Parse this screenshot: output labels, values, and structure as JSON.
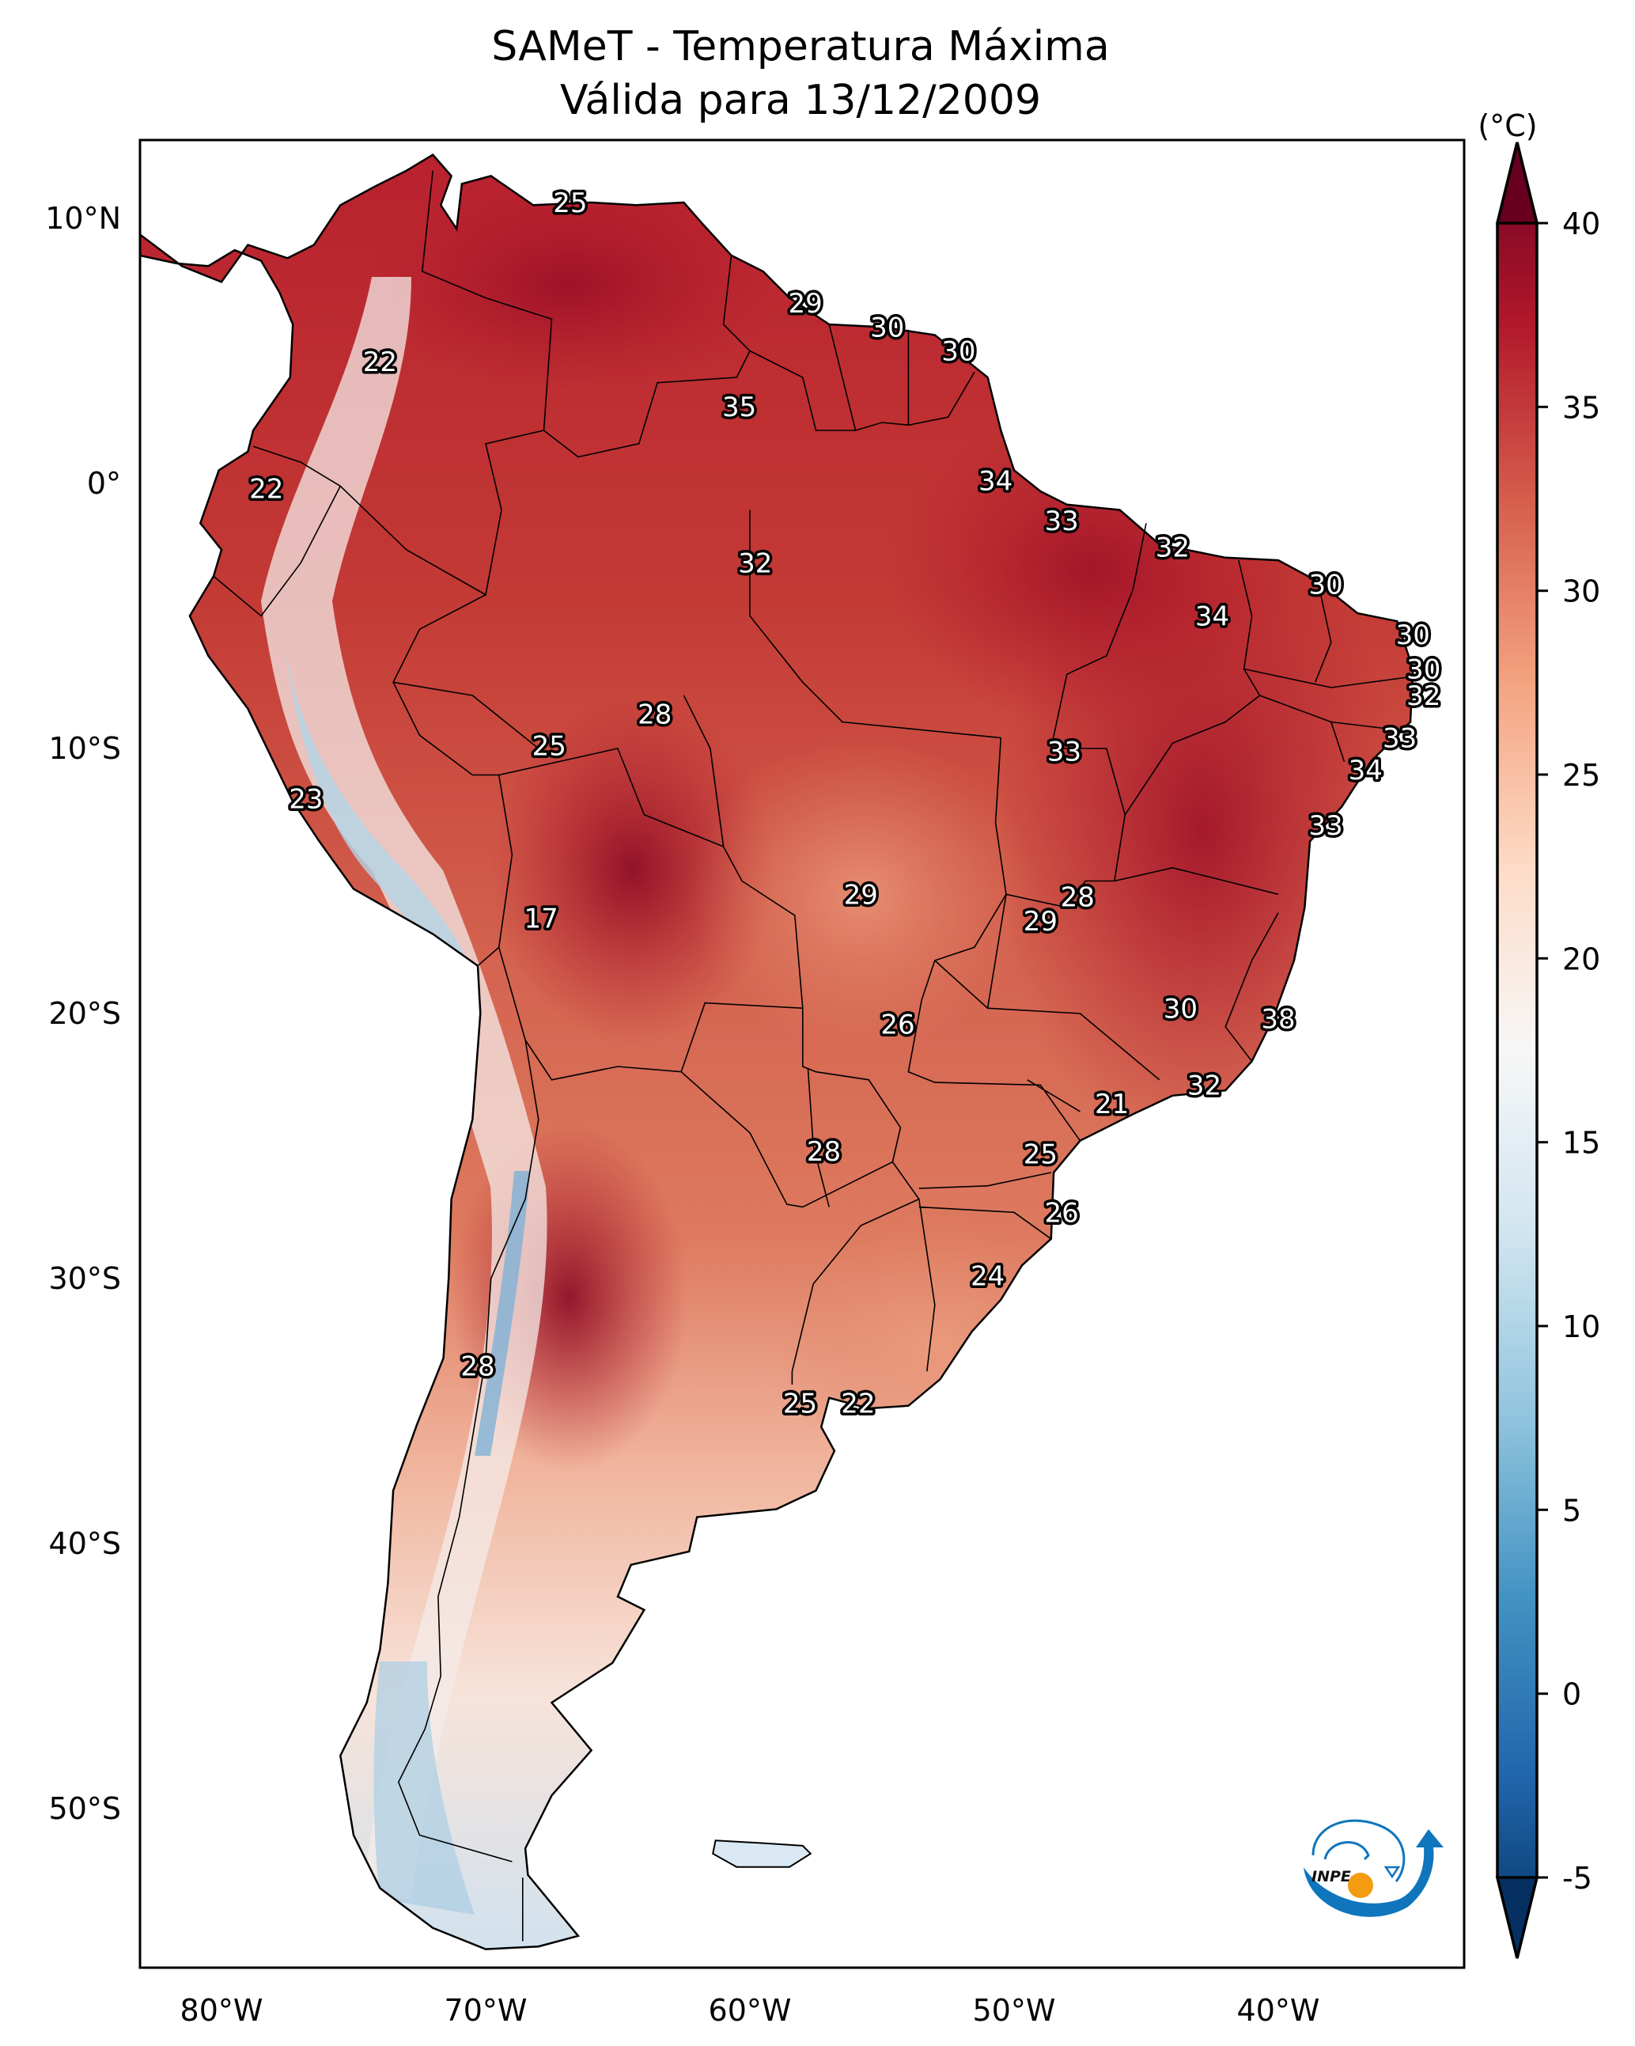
{
  "title": {
    "line1": "SAMeT - Temperatura Máxima",
    "line2": "Válida para 13/12/2009"
  },
  "map": {
    "region": "South America",
    "lon_range": [
      -83.1,
      -33.0
    ],
    "lat_range": [
      -56.0,
      12.95
    ],
    "x_ticks": [
      {
        "value": -80,
        "label": "80°W"
      },
      {
        "value": -70,
        "label": "70°W"
      },
      {
        "value": -60,
        "label": "60°W"
      },
      {
        "value": -50,
        "label": "50°W"
      },
      {
        "value": -40,
        "label": "40°W"
      }
    ],
    "y_ticks": [
      {
        "value": 10,
        "label": "10°N"
      },
      {
        "value": 0,
        "label": "0°"
      },
      {
        "value": -10,
        "label": "10°S"
      },
      {
        "value": -20,
        "label": "20°S"
      },
      {
        "value": -30,
        "label": "30°S"
      },
      {
        "value": -40,
        "label": "40°S"
      },
      {
        "value": -50,
        "label": "50°S"
      }
    ],
    "contour_labels": [
      {
        "value": "25",
        "lon": -66.8,
        "lat": 10.6
      },
      {
        "value": "22",
        "lon": -74.0,
        "lat": 4.6
      },
      {
        "value": "29",
        "lon": -57.9,
        "lat": 6.8
      },
      {
        "value": "30",
        "lon": -54.8,
        "lat": 5.9
      },
      {
        "value": "30",
        "lon": -52.1,
        "lat": 5.0
      },
      {
        "value": "35",
        "lon": -60.4,
        "lat": 2.9
      },
      {
        "value": "22",
        "lon": -78.3,
        "lat": -0.2
      },
      {
        "value": "34",
        "lon": -50.7,
        "lat": 0.1
      },
      {
        "value": "33",
        "lon": -48.2,
        "lat": -1.4
      },
      {
        "value": "32",
        "lon": -59.8,
        "lat": -3.0
      },
      {
        "value": "32",
        "lon": -44.0,
        "lat": -2.4
      },
      {
        "value": "30",
        "lon": -38.2,
        "lat": -3.8
      },
      {
        "value": "34",
        "lon": -42.5,
        "lat": -5.0
      },
      {
        "value": "30",
        "lon": -34.9,
        "lat": -5.7
      },
      {
        "value": "30",
        "lon": -34.5,
        "lat": -7.0
      },
      {
        "value": "32",
        "lon": -34.5,
        "lat": -8.0
      },
      {
        "value": "28",
        "lon": -63.6,
        "lat": -8.7
      },
      {
        "value": "25",
        "lon": -67.6,
        "lat": -9.9
      },
      {
        "value": "33",
        "lon": -48.1,
        "lat": -10.1
      },
      {
        "value": "33",
        "lon": -35.4,
        "lat": -9.6
      },
      {
        "value": "34",
        "lon": -36.7,
        "lat": -10.8
      },
      {
        "value": "23",
        "lon": -76.8,
        "lat": -11.9
      },
      {
        "value": "33",
        "lon": -38.2,
        "lat": -12.9
      },
      {
        "value": "28",
        "lon": -47.6,
        "lat": -15.6
      },
      {
        "value": "29",
        "lon": -55.8,
        "lat": -15.5
      },
      {
        "value": "29",
        "lon": -49.0,
        "lat": -16.5
      },
      {
        "value": "17",
        "lon": -67.9,
        "lat": -16.4
      },
      {
        "value": "30",
        "lon": -43.7,
        "lat": -19.8
      },
      {
        "value": "38",
        "lon": -40.0,
        "lat": -20.2
      },
      {
        "value": "26",
        "lon": -54.4,
        "lat": -20.4
      },
      {
        "value": "32",
        "lon": -42.8,
        "lat": -22.7
      },
      {
        "value": "21",
        "lon": -46.3,
        "lat": -23.4
      },
      {
        "value": "28",
        "lon": -57.2,
        "lat": -25.2
      },
      {
        "value": "25",
        "lon": -49.0,
        "lat": -25.3
      },
      {
        "value": "26",
        "lon": -48.2,
        "lat": -27.5
      },
      {
        "value": "24",
        "lon": -51.0,
        "lat": -29.9
      },
      {
        "value": "28",
        "lon": -70.3,
        "lat": -33.3
      },
      {
        "value": "25",
        "lon": -58.1,
        "lat": -34.7
      },
      {
        "value": "22",
        "lon": -55.9,
        "lat": -34.7
      }
    ]
  },
  "colorbar": {
    "unit_label": "(°C)",
    "min": -5,
    "max": 40,
    "extend": "both",
    "colormap": "RdBu_r",
    "ticks": [
      {
        "value": 40,
        "label": "40"
      },
      {
        "value": 35,
        "label": "35"
      },
      {
        "value": 30,
        "label": "30"
      },
      {
        "value": 25,
        "label": "25"
      },
      {
        "value": 20,
        "label": "20"
      },
      {
        "value": 15,
        "label": "15"
      },
      {
        "value": 10,
        "label": "10"
      },
      {
        "value": 5,
        "label": "5"
      },
      {
        "value": 0,
        "label": "0"
      },
      {
        "value": -5,
        "label": "-5"
      }
    ],
    "colors": [
      "#053061",
      "#2166ac",
      "#4393c3",
      "#92c5de",
      "#d1e5f0",
      "#f7f7f7",
      "#fddbc7",
      "#f4a582",
      "#d6604d",
      "#b2182b",
      "#67001f"
    ]
  },
  "logo": {
    "text": "INPE",
    "blue": "#0f75bc",
    "orange": "#f39c12"
  }
}
